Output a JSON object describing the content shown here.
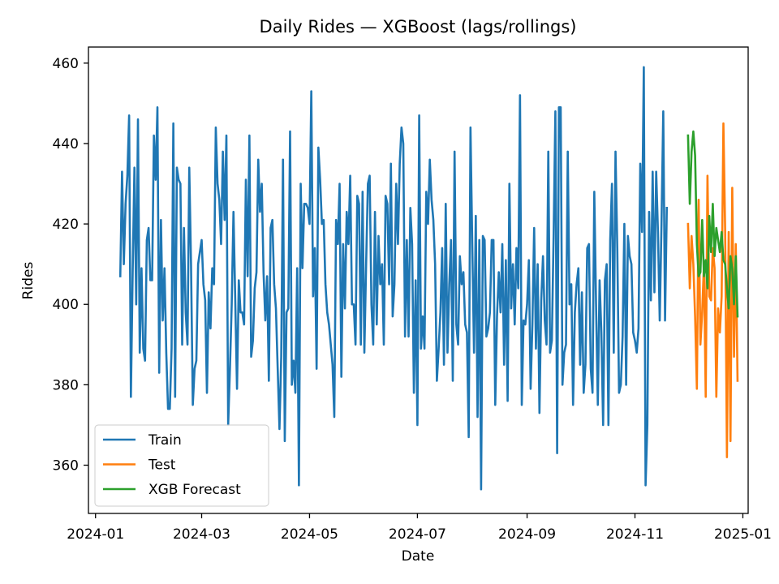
{
  "chart_data": {
    "type": "line",
    "title": "Daily Rides — XGBoost (lags/rollings)",
    "xlabel": "Date",
    "ylabel": "Rides",
    "x_ticks": [
      "2024-01",
      "2024-03",
      "2024-05",
      "2024-07",
      "2024-09",
      "2024-11",
      "2025-01"
    ],
    "y_ticks": [
      360,
      380,
      400,
      420,
      440,
      460
    ],
    "xlim": [
      "2023-12-28",
      "2025-01-04"
    ],
    "ylim": [
      348,
      464
    ],
    "grid": false,
    "legend_position": "lower-left",
    "series": [
      {
        "name": "Train",
        "color": "#1f77b4",
        "start_date": "2024-01-15",
        "values": [
          407,
          433,
          410,
          425,
          432,
          447,
          377,
          408,
          434,
          400,
          446,
          388,
          409,
          389,
          386,
          416,
          419,
          406,
          406,
          442,
          431,
          449,
          383,
          421,
          396,
          409,
          388,
          374,
          374,
          389,
          445,
          377,
          434,
          431,
          430,
          390,
          419,
          398,
          390,
          434,
          410,
          375,
          384,
          386,
          410,
          413,
          416,
          405,
          401,
          378,
          403,
          394,
          409,
          405,
          444,
          430,
          426,
          415,
          438,
          421,
          442,
          370,
          384,
          400,
          423,
          401,
          379,
          406,
          398,
          398,
          395,
          431,
          407,
          442,
          387,
          391,
          404,
          408,
          436,
          423,
          430,
          408,
          396,
          407,
          381,
          419,
          421,
          405,
          399,
          384,
          369,
          387,
          436,
          366,
          398,
          399,
          443,
          380,
          386,
          378,
          409,
          355,
          430,
          409,
          425,
          425,
          424,
          420,
          453,
          402,
          414,
          384,
          439,
          431,
          420,
          421,
          405,
          398,
          395,
          390,
          385,
          372,
          421,
          415,
          430,
          382,
          415,
          399,
          423,
          415,
          432,
          400,
          400,
          390,
          427,
          425,
          390,
          428,
          388,
          410,
          430,
          432,
          400,
          390,
          423,
          395,
          417,
          405,
          410,
          390,
          427,
          425,
          405,
          435,
          397,
          405,
          430,
          415,
          435,
          444,
          440,
          392,
          416,
          392,
          424,
          415,
          378,
          406,
          370,
          447,
          389,
          397,
          389,
          428,
          420,
          436,
          426,
          421,
          410,
          381,
          389,
          398,
          414,
          385,
          425,
          388,
          405,
          416,
          381,
          438,
          395,
          390,
          412,
          405,
          408,
          395,
          393,
          367,
          444,
          415,
          388,
          422,
          372,
          416,
          354,
          417,
          416,
          392,
          394,
          398,
          416,
          416,
          375,
          397,
          408,
          398,
          415,
          385,
          411,
          376,
          430,
          399,
          410,
          395,
          414,
          404,
          452,
          375,
          396,
          395,
          400,
          411,
          379,
          395,
          419,
          389,
          410,
          373,
          401,
          412,
          396,
          390,
          438,
          388,
          391,
          417,
          448,
          363,
          449,
          449,
          380,
          388,
          390,
          438,
          400,
          405,
          375,
          398,
          405,
          409,
          385,
          403,
          378,
          385,
          414,
          415,
          384,
          378,
          428,
          400,
          375,
          406,
          393,
          370,
          406,
          410,
          370,
          416,
          430,
          388,
          438,
          414,
          378,
          380,
          392,
          420,
          380,
          417,
          412,
          410,
          393,
          391,
          388,
          394,
          435,
          418,
          459,
          355,
          370,
          423,
          401,
          433,
          403,
          433,
          418,
          396,
          420,
          448,
          396,
          424
        ]
      },
      {
        "name": "Test",
        "color": "#ff7f0e",
        "start_date": "2024-12-01",
        "values": [
          420,
          404,
          417,
          410,
          397,
          379,
          426,
          390,
          398,
          410,
          377,
          432,
          402,
          401,
          414,
          409,
          377,
          399,
          393,
          402,
          445,
          418,
          362,
          418,
          366,
          429,
          387,
          415,
          381
        ]
      },
      {
        "name": "XGB Forecast",
        "color": "#2ca02c",
        "start_date": "2024-12-01",
        "values": [
          442,
          425,
          438,
          443,
          437,
          415,
          407,
          408,
          421,
          407,
          411,
          404,
          422,
          413,
          425,
          412,
          419,
          416,
          413,
          418,
          411,
          410,
          404,
          399,
          412,
          409,
          400,
          412,
          397
        ]
      }
    ]
  }
}
